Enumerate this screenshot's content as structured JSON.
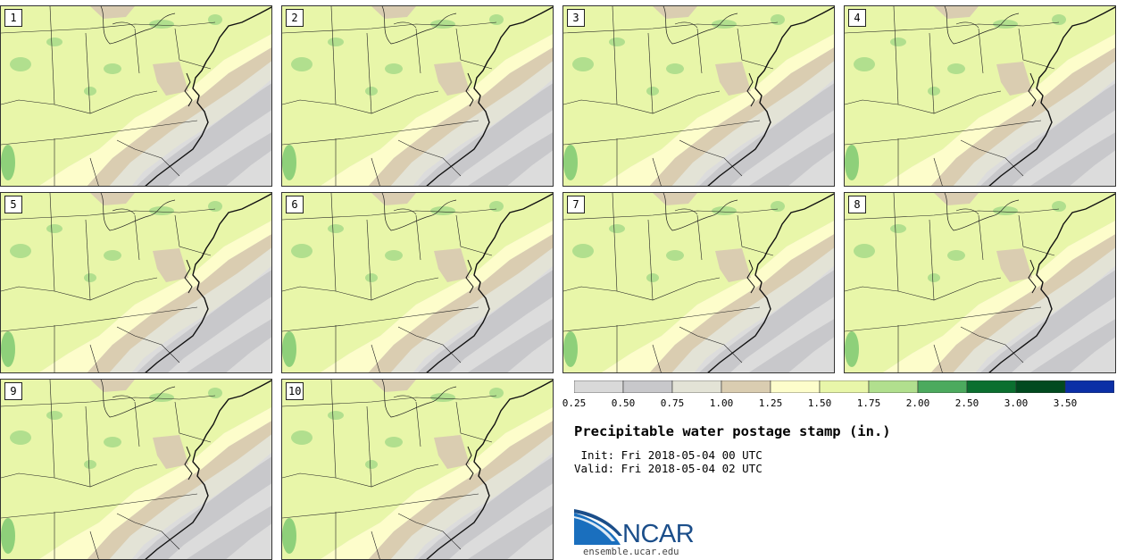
{
  "panels": [
    {
      "label": "1"
    },
    {
      "label": "2"
    },
    {
      "label": "3"
    },
    {
      "label": "4"
    },
    {
      "label": "5"
    },
    {
      "label": "6"
    },
    {
      "label": "7"
    },
    {
      "label": "8"
    },
    {
      "label": "9"
    },
    {
      "label": "10"
    }
  ],
  "legend": {
    "ticks": [
      "0.25",
      "0.50",
      "0.75",
      "1.00",
      "1.25",
      "1.50",
      "1.75",
      "2.00",
      "2.50",
      "3.00",
      "3.50"
    ],
    "colors": [
      "#d9d9d9",
      "#c8c8cb",
      "#e3e3d6",
      "#dacdb1",
      "#fdfdcb",
      "#e8f6a9",
      "#b1df8e",
      "#4caa5e",
      "#0b6f2f",
      "#014a1f",
      "#0b2fa6"
    ]
  },
  "title": "Precipitable water postage stamp (in.)",
  "init": " Init: Fri 2018-05-04 00 UTC",
  "valid": "Valid: Fri 2018-05-04 02 UTC",
  "logo": {
    "text": "NCAR",
    "url": "ensemble.ucar.edu",
    "color": "#1b4e8a"
  },
  "map_colors": {
    "gray_dark": "#c8c8cb",
    "gray_light": "#dcdcdc",
    "tan": "#dacdb1",
    "pale": "#e3e3d6",
    "yellow": "#fdfdcb",
    "lime": "#e8f6a9",
    "green": "#b1df8e"
  }
}
